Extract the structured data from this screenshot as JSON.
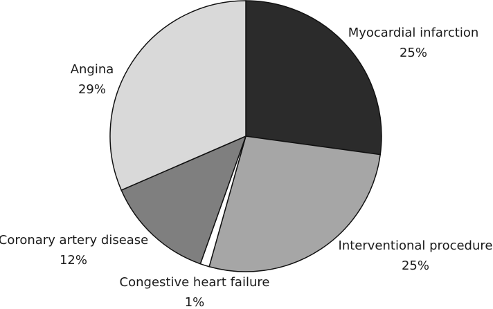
{
  "chart_data": {
    "type": "pie",
    "categories": [
      "Myocardial infarction",
      "Interventional procedure",
      "Congestive heart failure",
      "Coronary artery disease",
      "Angina"
    ],
    "values": [
      25,
      25,
      1,
      12,
      29
    ],
    "value_labels": [
      "25%",
      "25%",
      "1%",
      "12%",
      "29%"
    ],
    "colors": [
      "#2b2b2b",
      "#a6a6a6",
      "#ffffff",
      "#7f7f7f",
      "#d9d9d9"
    ]
  }
}
